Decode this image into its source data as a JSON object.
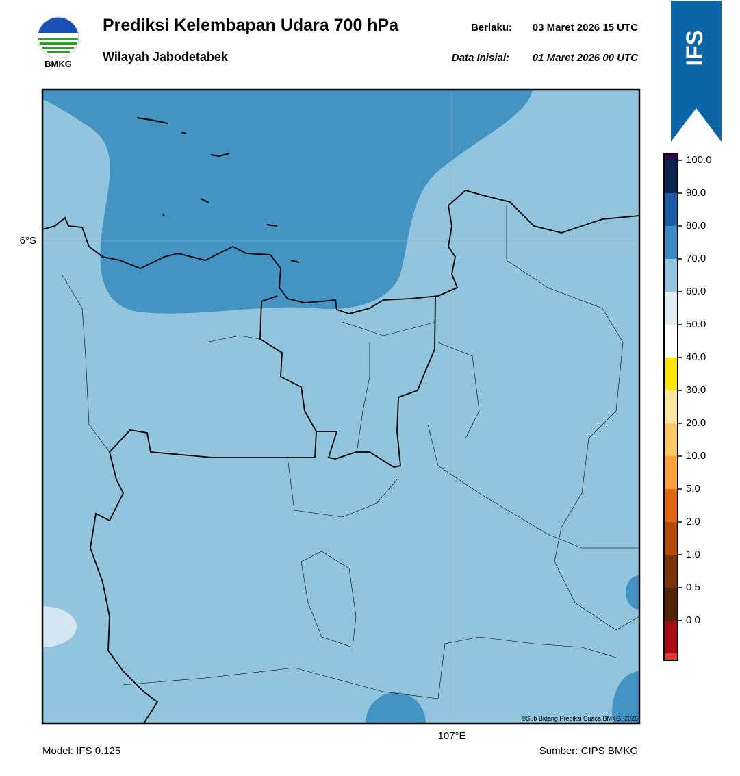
{
  "header": {
    "title": "Prediksi Kelembapan Udara 700 hPa",
    "subtitle": "Wilayah Jabodetabek",
    "valid_label": "Berlaku:",
    "valid_time": "03 Maret 2026 15 UTC",
    "init_label": "Data Inisial:",
    "init_time": "01 Maret 2026 00 UTC"
  },
  "logo": {
    "text": "BMKG"
  },
  "banner": {
    "text": "IFS"
  },
  "map": {
    "lat_label": "6°S",
    "lon_label": "107°E",
    "credit": "©Sub Bidang Prediksi Cuaca BMKG, 2026"
  },
  "colorbar": {
    "labels": [
      "100.0",
      "90.0",
      "80.0",
      "70.0",
      "60.0",
      "50.0",
      "40.0",
      "30.0",
      "20.0",
      "10.0",
      "5.0",
      "2.0",
      "1.0",
      "0.5",
      "0.0"
    ],
    "colors": [
      "#2d0a4f",
      "#08264f",
      "#1c5ba6",
      "#3a8ac2",
      "#93c4de",
      "#e2edf5",
      "#ffffff",
      "#ffe500",
      "#ffe7a1",
      "#fec865",
      "#fba03a",
      "#e1660f",
      "#b34a06",
      "#7a3408",
      "#4f2308",
      "#a50f15",
      "#e0382c"
    ]
  },
  "footer": {
    "model": "Model: IFS 0.125",
    "source": "Sumber: CIPS BMKG"
  }
}
